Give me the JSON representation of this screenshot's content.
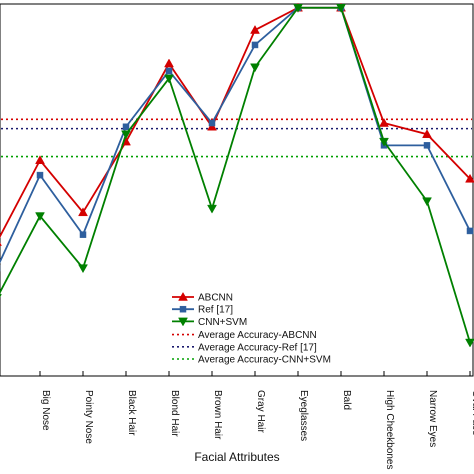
{
  "chart_data": {
    "type": "line",
    "xlabel": "Facial Attributes",
    "ylabel": "",
    "categories": [
      "",
      "Big Nose",
      "Pointy Nose",
      "Black Hair",
      "Blond Hair",
      "Brown Hair",
      "Gray Hair",
      "Eyeglasses",
      "Bald",
      "High Cheekbones",
      "Narrow Eyes",
      "Oval Face"
    ],
    "ylim": [
      0,
      1
    ],
    "grid": false,
    "legend_position": "lower-center",
    "series": [
      {
        "name": "ABCNN",
        "color": "#d40000",
        "marker": "triangle-up",
        "values": [
          0.36,
          0.58,
          0.44,
          0.63,
          0.84,
          0.67,
          0.93,
          0.99,
          0.99,
          0.68,
          0.65,
          0.53
        ]
      },
      {
        "name": "Ref [17]",
        "color": "#2e5f9e",
        "marker": "square",
        "values": [
          0.29,
          0.54,
          0.38,
          0.67,
          0.82,
          0.68,
          0.89,
          0.99,
          0.99,
          0.62,
          0.62,
          0.39
        ]
      },
      {
        "name": "CNN+SVM",
        "color": "#008000",
        "marker": "triangle-down",
        "values": [
          0.21,
          0.43,
          0.29,
          0.65,
          0.8,
          0.45,
          0.83,
          0.99,
          0.99,
          0.63,
          0.47,
          0.09
        ]
      }
    ],
    "reference_lines": [
      {
        "name": "Average Accuracy-ABCNN",
        "color": "#d40000",
        "style": "dotted",
        "value": 0.69
      },
      {
        "name": "Average Accuracy-Ref [17]",
        "color": "#1a1a6e",
        "style": "dotted",
        "value": 0.665
      },
      {
        "name": "Average Accuracy-CNN+SVM",
        "color": "#00a000",
        "style": "dotted",
        "value": 0.59
      }
    ]
  }
}
